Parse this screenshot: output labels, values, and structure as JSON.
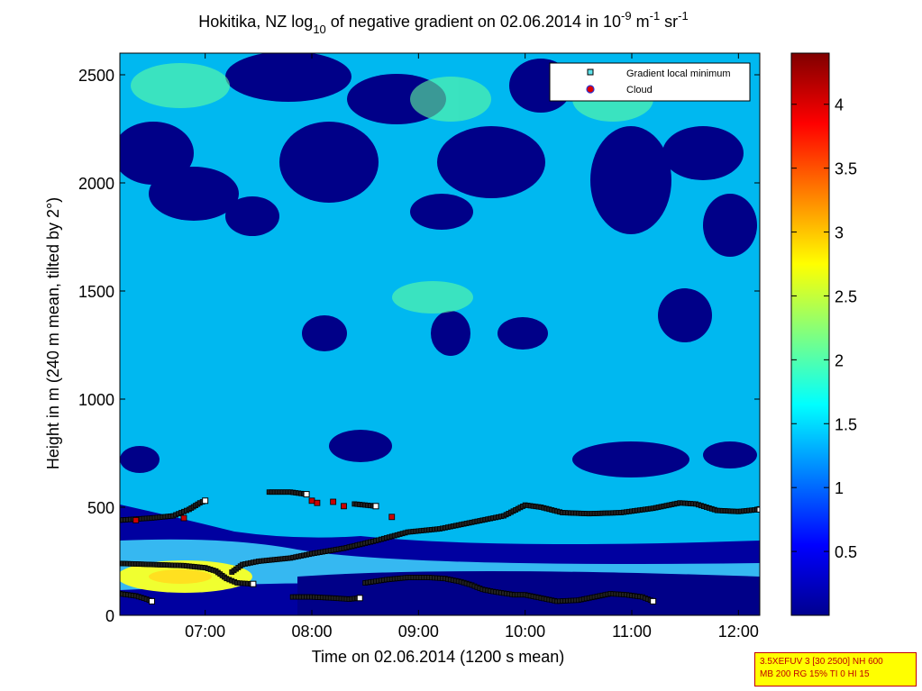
{
  "chart_data": {
    "type": "heatmap",
    "title_parts": {
      "a": "Hokitika, NZ log",
      "sub1": "10",
      "b": " of negative gradient on 02.06.2014 in 10",
      "sup1": "-9",
      "c": " m",
      "sup2": "-1",
      "d": " sr",
      "sup3": "-1"
    },
    "xlabel": "Time on 02.06.2014 (1200 s mean)",
    "ylabel": "Height in m (240 m mean, tilted by 2°)",
    "x_range_hours": [
      6.2,
      12.2
    ],
    "ylim": [
      0,
      2600
    ],
    "x_ticks": [
      {
        "value": 7,
        "label": "07:00"
      },
      {
        "value": 8,
        "label": "08:00"
      },
      {
        "value": 9,
        "label": "09:00"
      },
      {
        "value": 10,
        "label": "10:00"
      },
      {
        "value": 11,
        "label": "11:00"
      },
      {
        "value": 12,
        "label": "12:00"
      }
    ],
    "y_ticks": [
      {
        "value": 0,
        "label": "0"
      },
      {
        "value": 500,
        "label": "500"
      },
      {
        "value": 1000,
        "label": "1000"
      },
      {
        "value": 1500,
        "label": "1500"
      },
      {
        "value": 2000,
        "label": "2000"
      },
      {
        "value": 2500,
        "label": "2500"
      }
    ],
    "colorbar": {
      "range": [
        0,
        4.4
      ],
      "ticks": [
        {
          "value": 0.5,
          "label": "0.5"
        },
        {
          "value": 1,
          "label": "1"
        },
        {
          "value": 1.5,
          "label": "1.5"
        },
        {
          "value": 2,
          "label": "2"
        },
        {
          "value": 2.5,
          "label": "2.5"
        },
        {
          "value": 3,
          "label": "3"
        },
        {
          "value": 3.5,
          "label": "3.5"
        },
        {
          "value": 4,
          "label": "4"
        }
      ]
    },
    "legend": {
      "placement": "top-right",
      "entries": [
        {
          "label": "Gradient local minimum",
          "marker": "square",
          "color": "#5ee0e8"
        },
        {
          "label": "Cloud",
          "marker": "circle",
          "color": "#e00000"
        }
      ]
    },
    "series": [
      {
        "name": "Gradient local minimum",
        "segments": [
          [
            [
              6.2,
              440
            ],
            [
              6.5,
              450
            ],
            [
              6.7,
              460
            ],
            [
              6.85,
              490
            ],
            [
              6.95,
              520
            ],
            [
              7.0,
              530
            ]
          ],
          [
            [
              6.2,
              240
            ],
            [
              6.5,
              235
            ],
            [
              6.8,
              230
            ],
            [
              7.0,
              220
            ],
            [
              7.1,
              205
            ],
            [
              7.2,
              170
            ],
            [
              7.3,
              150
            ],
            [
              7.45,
              145
            ]
          ],
          [
            [
              6.2,
              100
            ],
            [
              6.35,
              90
            ],
            [
              6.45,
              75
            ],
            [
              6.5,
              65
            ]
          ],
          [
            [
              7.25,
              200
            ],
            [
              7.35,
              235
            ],
            [
              7.5,
              250
            ],
            [
              7.8,
              265
            ],
            [
              8.0,
              285
            ],
            [
              8.3,
              310
            ],
            [
              8.6,
              345
            ],
            [
              8.9,
              385
            ],
            [
              9.2,
              400
            ],
            [
              9.5,
              430
            ],
            [
              9.8,
              460
            ],
            [
              10.0,
              510
            ],
            [
              10.15,
              500
            ],
            [
              10.35,
              475
            ],
            [
              10.6,
              470
            ],
            [
              10.9,
              475
            ],
            [
              11.2,
              495
            ],
            [
              11.45,
              520
            ],
            [
              11.6,
              515
            ],
            [
              11.8,
              485
            ],
            [
              12.0,
              480
            ],
            [
              12.2,
              490
            ]
          ],
          [
            [
              7.6,
              570
            ],
            [
              7.8,
              570
            ],
            [
              7.95,
              560
            ]
          ],
          [
            [
              8.4,
              515
            ],
            [
              8.5,
              510
            ],
            [
              8.6,
              505
            ]
          ],
          [
            [
              7.82,
              85
            ],
            [
              8.0,
              85
            ],
            [
              8.2,
              80
            ],
            [
              8.35,
              75
            ],
            [
              8.45,
              80
            ]
          ],
          [
            [
              8.5,
              150
            ],
            [
              8.7,
              165
            ],
            [
              8.9,
              175
            ],
            [
              9.1,
              175
            ],
            [
              9.25,
              170
            ],
            [
              9.4,
              155
            ],
            [
              9.5,
              140
            ],
            [
              9.6,
              120
            ],
            [
              9.7,
              110
            ],
            [
              9.9,
              95
            ],
            [
              10.0,
              95
            ],
            [
              10.1,
              85
            ],
            [
              10.3,
              65
            ],
            [
              10.5,
              70
            ],
            [
              10.65,
              85
            ],
            [
              10.8,
              100
            ],
            [
              10.95,
              95
            ],
            [
              11.1,
              85
            ],
            [
              11.2,
              65
            ]
          ]
        ]
      },
      {
        "name": "Cloud",
        "points": [
          [
            6.35,
            440
          ],
          [
            8.0,
            530
          ],
          [
            8.05,
            520
          ],
          [
            8.2,
            525
          ],
          [
            8.3,
            505
          ],
          [
            8.75,
            455
          ],
          [
            6.8,
            450
          ]
        ]
      }
    ]
  },
  "info_box": {
    "line1": "3.5XEFUV 3 [30 2500] NH 600",
    "line2": "MB 200 RG 15% TI 0 HI 15"
  }
}
